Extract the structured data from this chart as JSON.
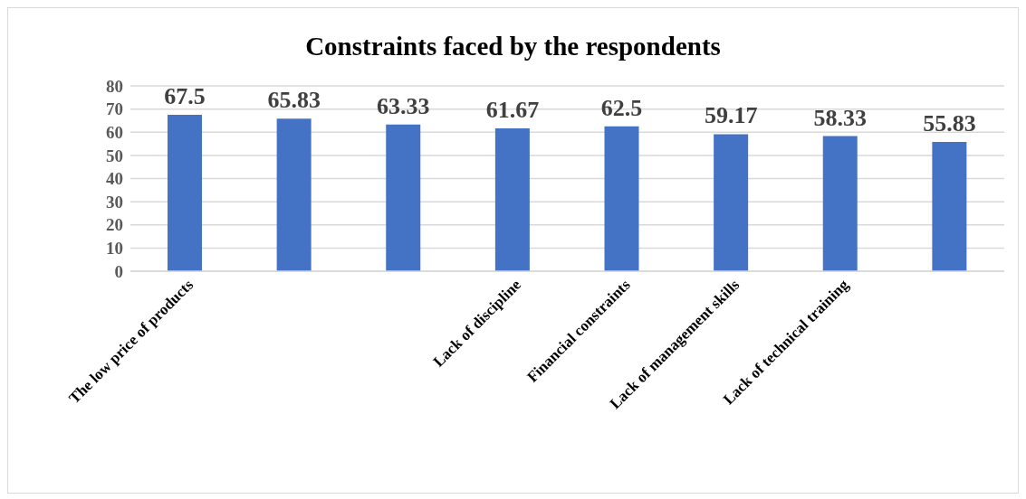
{
  "chart_data": {
    "type": "bar",
    "title": "Constraints faced by the respondents",
    "categories": [
      "The low price of products",
      null,
      null,
      "Lack of discipline",
      "Financial constraints",
      "Lack of management skills",
      "Lack of technical training",
      null
    ],
    "values": [
      67.5,
      65.83,
      63.33,
      61.67,
      62.5,
      59.17,
      58.33,
      55.83
    ],
    "color": "#4472c4",
    "ylim": [
      0,
      80
    ],
    "yticks": [
      0,
      10,
      20,
      30,
      40,
      50,
      60,
      70,
      80
    ],
    "grid": "y",
    "data_labels": true
  }
}
